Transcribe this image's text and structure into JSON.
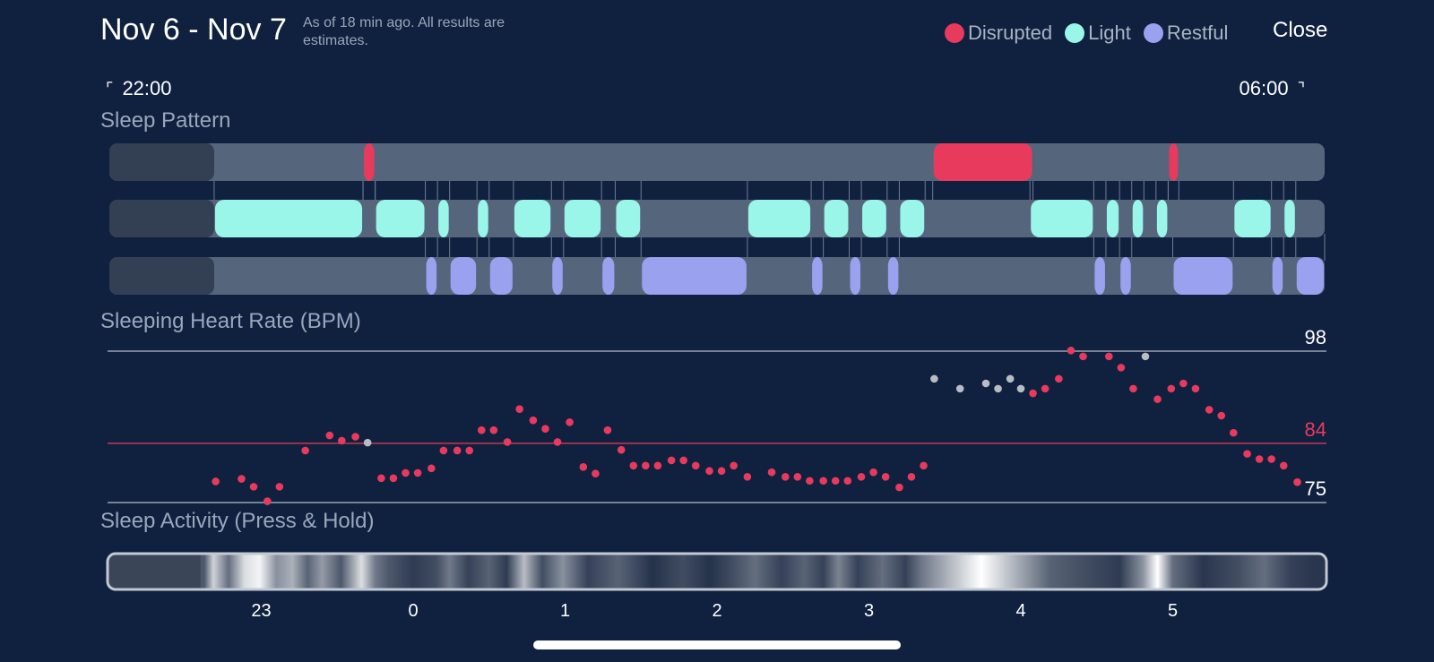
{
  "header": {
    "title": "Nov 6 - Nov 7",
    "subtitle": "As of 18 min ago. All results are estimates.",
    "close_label": "Close"
  },
  "legend": [
    {
      "label": "Disrupted",
      "color": "#e83a5c"
    },
    {
      "label": "Light",
      "color": "#9af6e8"
    },
    {
      "label": "Restful",
      "color": "#9aa1ef"
    }
  ],
  "time_range": {
    "start": "22:00",
    "end": "06:00"
  },
  "sections": {
    "sleep_pattern": "Sleep Pattern",
    "heart_rate": "Sleeping Heart Rate (BPM)",
    "activity": "Sleep Activity (Press & Hold)"
  },
  "colors": {
    "background": "#0f213f",
    "track": "#55657c",
    "track_offset": "#333f52",
    "disrupted": "#e83a5c",
    "light": "#9af6e8",
    "restful": "#9aa1ef",
    "hr_point": "#e83a5c",
    "hr_point_gray": "#b9bcc2",
    "grid_line": "#9aa3b3"
  },
  "chart_data": [
    {
      "type": "timeline",
      "title": "Sleep Pattern",
      "x_unit": "hours_since_22:00",
      "x_range": [
        0,
        8
      ],
      "sleep_start_hour": 0.69,
      "rows": [
        {
          "name": "Disrupted",
          "segments": [
            [
              1.67,
              1.75
            ],
            [
              5.42,
              6.08
            ],
            [
              6.97,
              7.04
            ]
          ]
        },
        {
          "name": "Light",
          "segments": [
            [
              0.69,
              1.67
            ],
            [
              1.75,
              2.08
            ],
            [
              2.16,
              2.24
            ],
            [
              2.42,
              2.5
            ],
            [
              2.66,
              2.91
            ],
            [
              2.99,
              3.24
            ],
            [
              3.33,
              3.5
            ],
            [
              4.2,
              4.62
            ],
            [
              4.7,
              4.87
            ],
            [
              4.95,
              5.12
            ],
            [
              5.2,
              5.37
            ],
            [
              6.06,
              6.48
            ],
            [
              6.56,
              6.65
            ],
            [
              6.73,
              6.81
            ],
            [
              6.89,
              6.97
            ],
            [
              7.4,
              7.65
            ],
            [
              7.73,
              7.81
            ]
          ]
        },
        {
          "name": "Restful",
          "segments": [
            [
              2.08,
              2.16
            ],
            [
              2.24,
              2.42
            ],
            [
              2.5,
              2.66
            ],
            [
              2.91,
              2.99
            ],
            [
              3.24,
              3.33
            ],
            [
              3.5,
              4.2
            ],
            [
              4.62,
              4.7
            ],
            [
              4.87,
              4.95
            ],
            [
              5.12,
              5.2
            ],
            [
              6.48,
              6.56
            ],
            [
              6.65,
              6.73
            ],
            [
              7.0,
              7.4
            ],
            [
              7.65,
              7.73
            ],
            [
              7.81,
              8.0
            ]
          ]
        }
      ]
    },
    {
      "type": "scatter",
      "title": "Sleeping Heart Rate (BPM)",
      "x_unit": "hours_since_22:00",
      "ylim": [
        75,
        98
      ],
      "reference_lines": [
        98,
        84,
        75
      ],
      "highlight_line": 84,
      "points": [
        [
          0.7,
          78.2
        ],
        [
          0.87,
          78.6
        ],
        [
          0.95,
          77.4
        ],
        [
          1.04,
          75.2
        ],
        [
          1.12,
          77.4
        ],
        [
          1.29,
          82.9
        ],
        [
          1.45,
          85.2
        ],
        [
          1.53,
          84.4
        ],
        [
          1.62,
          85.0
        ],
        [
          1.7,
          84.1,
          "gray"
        ],
        [
          1.79,
          78.7
        ],
        [
          1.87,
          78.7
        ],
        [
          1.95,
          79.5
        ],
        [
          2.03,
          79.5
        ],
        [
          2.12,
          80.2
        ],
        [
          2.2,
          82.9
        ],
        [
          2.29,
          82.9
        ],
        [
          2.37,
          82.9
        ],
        [
          2.45,
          86.0
        ],
        [
          2.53,
          86.0
        ],
        [
          2.62,
          84.2
        ],
        [
          2.7,
          89.2
        ],
        [
          2.79,
          87.5
        ],
        [
          2.87,
          86.2
        ],
        [
          2.95,
          84.2
        ],
        [
          3.03,
          87.2
        ],
        [
          3.12,
          80.4
        ],
        [
          3.2,
          79.4
        ],
        [
          3.28,
          86.0
        ],
        [
          3.37,
          83.0
        ],
        [
          3.45,
          80.6
        ],
        [
          3.53,
          80.6
        ],
        [
          3.61,
          80.6
        ],
        [
          3.7,
          81.4
        ],
        [
          3.78,
          81.4
        ],
        [
          3.86,
          80.6
        ],
        [
          3.95,
          79.8
        ],
        [
          4.03,
          79.8
        ],
        [
          4.11,
          80.6
        ],
        [
          4.2,
          78.9
        ],
        [
          4.36,
          79.6
        ],
        [
          4.45,
          78.9
        ],
        [
          4.53,
          78.9
        ],
        [
          4.61,
          78.3
        ],
        [
          4.7,
          78.3
        ],
        [
          4.78,
          78.3
        ],
        [
          4.86,
          78.3
        ],
        [
          4.95,
          78.9
        ],
        [
          5.03,
          79.6
        ],
        [
          5.11,
          78.9
        ],
        [
          5.2,
          77.3
        ],
        [
          5.28,
          78.9
        ],
        [
          5.36,
          80.6
        ],
        [
          5.43,
          93.8,
          "gray"
        ],
        [
          5.6,
          92.3,
          "gray"
        ],
        [
          5.77,
          93.1,
          "gray"
        ],
        [
          5.85,
          92.3,
          "gray"
        ],
        [
          5.93,
          93.8,
          "gray"
        ],
        [
          6.0,
          92.3,
          "gray"
        ],
        [
          6.08,
          91.6
        ],
        [
          6.16,
          92.3
        ],
        [
          6.25,
          93.8
        ],
        [
          6.33,
          98.1
        ],
        [
          6.41,
          97.2
        ],
        [
          6.58,
          97.2
        ],
        [
          6.66,
          95.5
        ],
        [
          6.74,
          92.3
        ],
        [
          6.82,
          97.2,
          "gray"
        ],
        [
          6.9,
          90.7
        ],
        [
          6.99,
          92.3
        ],
        [
          7.07,
          93.1
        ],
        [
          7.15,
          92.3
        ],
        [
          7.24,
          89.1
        ],
        [
          7.32,
          88.2
        ],
        [
          7.4,
          85.6
        ],
        [
          7.49,
          82.4
        ],
        [
          7.57,
          81.6
        ],
        [
          7.65,
          81.6
        ],
        [
          7.73,
          80.6
        ],
        [
          7.82,
          78.1
        ]
      ]
    },
    {
      "type": "heatmap",
      "title": "Sleep Activity (Press & Hold)",
      "x_unit": "hours_since_22:00",
      "x_ticks": [
        {
          "label": "23",
          "hour": 1.0
        },
        {
          "label": "0",
          "hour": 2.0
        },
        {
          "label": "1",
          "hour": 3.0
        },
        {
          "label": "2",
          "hour": 4.0
        },
        {
          "label": "3",
          "hour": 5.0
        },
        {
          "label": "4",
          "hour": 6.0
        },
        {
          "label": "5",
          "hour": 7.0
        }
      ],
      "intensity_bands": [
        [
          0.6,
          0.65,
          0.25
        ],
        [
          0.65,
          0.72,
          0.8
        ],
        [
          0.72,
          0.85,
          0.35
        ],
        [
          0.85,
          0.93,
          0.85
        ],
        [
          0.93,
          1.05,
          0.95
        ],
        [
          1.05,
          1.15,
          0.5
        ],
        [
          1.15,
          1.26,
          0.65
        ],
        [
          1.26,
          1.35,
          0.3
        ],
        [
          1.35,
          1.45,
          0.55
        ],
        [
          1.45,
          1.6,
          0.25
        ],
        [
          1.6,
          1.72,
          0.85
        ],
        [
          1.72,
          1.78,
          0.4
        ],
        [
          1.78,
          1.9,
          0.25
        ],
        [
          1.9,
          2.1,
          0.12
        ],
        [
          2.1,
          2.2,
          0.2
        ],
        [
          2.2,
          2.28,
          0.4
        ],
        [
          2.28,
          2.45,
          0.15
        ],
        [
          2.45,
          2.55,
          0.3
        ],
        [
          2.55,
          2.68,
          0.12
        ],
        [
          2.68,
          2.78,
          0.7
        ],
        [
          2.78,
          2.92,
          0.2
        ],
        [
          2.92,
          3.05,
          0.5
        ],
        [
          3.05,
          3.25,
          0.15
        ],
        [
          3.25,
          3.45,
          0.3
        ],
        [
          3.45,
          3.7,
          0.08
        ],
        [
          3.7,
          3.85,
          0.2
        ],
        [
          3.85,
          4.05,
          0.08
        ],
        [
          4.05,
          4.15,
          0.2
        ],
        [
          4.15,
          4.35,
          0.35
        ],
        [
          4.35,
          4.5,
          0.15
        ],
        [
          4.5,
          4.65,
          0.3
        ],
        [
          4.65,
          4.75,
          0.15
        ],
        [
          4.75,
          4.85,
          0.45
        ],
        [
          4.85,
          5.0,
          0.15
        ],
        [
          5.0,
          5.18,
          0.35
        ],
        [
          5.18,
          5.3,
          0.15
        ],
        [
          5.3,
          5.4,
          0.4
        ],
        [
          5.4,
          6.08,
          1.0
        ],
        [
          6.08,
          6.3,
          0.3
        ],
        [
          6.3,
          6.55,
          0.2
        ],
        [
          6.55,
          6.75,
          0.12
        ],
        [
          6.75,
          6.85,
          0.5
        ],
        [
          6.85,
          6.95,
          1.0
        ],
        [
          6.95,
          7.05,
          0.35
        ],
        [
          7.05,
          7.35,
          0.1
        ],
        [
          7.35,
          7.5,
          0.2
        ],
        [
          7.5,
          7.7,
          0.35
        ],
        [
          7.7,
          7.85,
          0.15
        ],
        [
          7.85,
          8.0,
          0.1
        ]
      ]
    }
  ]
}
